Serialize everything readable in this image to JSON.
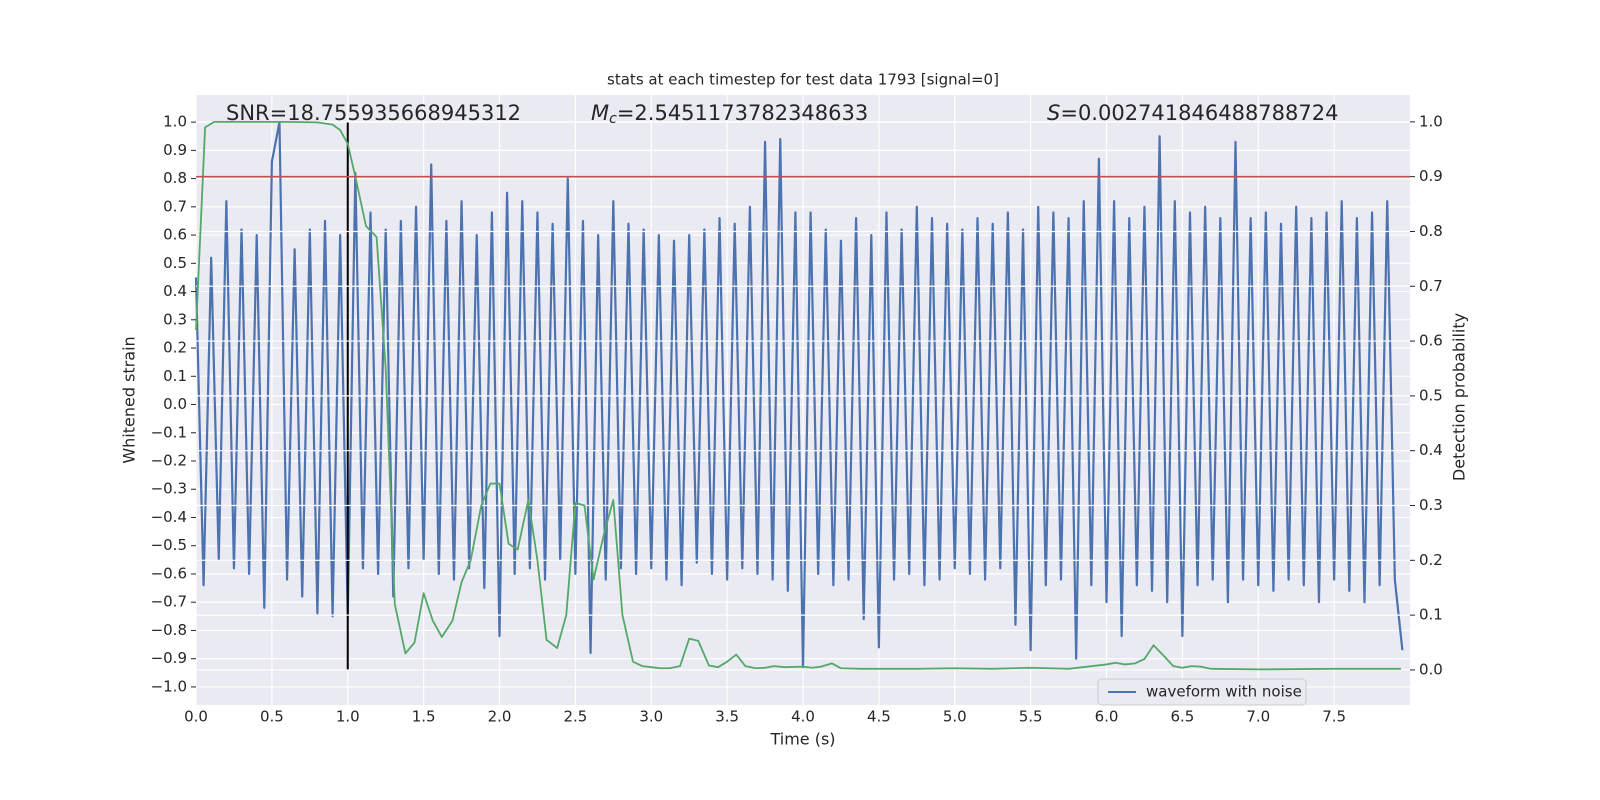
{
  "chart_data": {
    "type": "line",
    "title": "stats at each timestep for test data 1793 [signal=0]",
    "xlabel": "Time (s)",
    "ylabel": "Whitened strain",
    "y2label": "Detection probability",
    "annotations": {
      "snr": "SNR=18.755935668945312",
      "mc": {
        "symbol": "M",
        "subscript": "c",
        "text": "=2.5451173782348633"
      },
      "s": {
        "symbol": "S",
        "text": "=0.002741846488788724"
      }
    },
    "xlim": [
      0,
      8.0
    ],
    "ylim": [
      -1.064,
      1.096
    ],
    "y2lim": [
      -0.064,
      1.049
    ],
    "xticks": [
      {
        "value": 0,
        "label": "0.0"
      },
      0.5,
      {
        "value": 1,
        "label": "1.0"
      },
      1.5,
      {
        "value": 2,
        "label": "2.0"
      },
      2.5,
      {
        "value": 3,
        "label": "3.0"
      },
      3.5,
      {
        "value": 4,
        "label": "4.0"
      },
      4.5,
      {
        "value": 5,
        "label": "5.0"
      },
      5.5,
      {
        "value": 6,
        "label": "6.0"
      },
      6.5,
      {
        "value": 7,
        "label": "7.0"
      },
      7.5
    ],
    "yticks": [
      {
        "value": -1,
        "label": "−1.0"
      },
      {
        "value": -0.9,
        "label": "−0.9"
      },
      {
        "value": -0.8,
        "label": "−0.8"
      },
      {
        "value": -0.7,
        "label": "−0.7"
      },
      {
        "value": -0.6,
        "label": "−0.6"
      },
      {
        "value": -0.5,
        "label": "−0.5"
      },
      {
        "value": -0.4,
        "label": "−0.4"
      },
      {
        "value": -0.3,
        "label": "−0.3"
      },
      {
        "value": -0.2,
        "label": "−0.2"
      },
      {
        "value": -0.1,
        "label": "−0.1"
      },
      {
        "value": 0,
        "label": "0.0"
      },
      0.1,
      0.2,
      0.3,
      0.4,
      0.5,
      0.6,
      0.7,
      0.8,
      0.9,
      {
        "value": 1,
        "label": "1.0"
      }
    ],
    "y2ticks": [
      {
        "value": 0,
        "label": "0.0"
      },
      0.1,
      0.2,
      0.3,
      0.4,
      0.5,
      0.6,
      0.7,
      0.8,
      0.9,
      {
        "value": 1,
        "label": "1.0"
      }
    ],
    "grid": true,
    "hline": {
      "y2": 0.9,
      "color": "#c44e52"
    },
    "vline": {
      "x": 1.0,
      "ymin": -0.94,
      "ymax": 1.0,
      "color": "#000000"
    },
    "series": [
      {
        "name": "waveform with noise",
        "color": "#4c72b0",
        "x": [
          0,
          0.05,
          0.1,
          0.15,
          0.2,
          0.25,
          0.3,
          0.35,
          0.4,
          0.45,
          0.5,
          0.55,
          0.6,
          0.65,
          0.7,
          0.75,
          0.8,
          0.85,
          0.9,
          0.95,
          1,
          1.05,
          1.1,
          1.15,
          1.2,
          1.25,
          1.3,
          1.35,
          1.4,
          1.45,
          1.5,
          1.55,
          1.6,
          1.65,
          1.7,
          1.75,
          1.8,
          1.85,
          1.9,
          1.95,
          2,
          2.05,
          2.1,
          2.15,
          2.2,
          2.25,
          2.3,
          2.35,
          2.4,
          2.45,
          2.5,
          2.55,
          2.6,
          2.65,
          2.7,
          2.75,
          2.8,
          2.85,
          2.9,
          2.95,
          3,
          3.05,
          3.1,
          3.15,
          3.2,
          3.25,
          3.3,
          3.35,
          3.4,
          3.45,
          3.5,
          3.55,
          3.6,
          3.65,
          3.7,
          3.75,
          3.8,
          3.85,
          3.9,
          3.95,
          4,
          4.05,
          4.1,
          4.15,
          4.2,
          4.25,
          4.3,
          4.35,
          4.4,
          4.45,
          4.5,
          4.55,
          4.6,
          4.65,
          4.7,
          4.75,
          4.8,
          4.85,
          4.9,
          4.95,
          5,
          5.05,
          5.1,
          5.15,
          5.2,
          5.25,
          5.3,
          5.35,
          5.4,
          5.45,
          5.5,
          5.55,
          5.6,
          5.65,
          5.7,
          5.75,
          5.8,
          5.85,
          5.9,
          5.95,
          6,
          6.05,
          6.1,
          6.15,
          6.2,
          6.25,
          6.3,
          6.35,
          6.4,
          6.45,
          6.5,
          6.55,
          6.6,
          6.65,
          6.7,
          6.75,
          6.8,
          6.85,
          6.9,
          6.95,
          7,
          7.05,
          7.1,
          7.15,
          7.2,
          7.25,
          7.3,
          7.35,
          7.4,
          7.45,
          7.5,
          7.55,
          7.6,
          7.65,
          7.7,
          7.75,
          7.8,
          7.85,
          7.9,
          7.95
        ],
        "values": [
          0.45,
          -0.64,
          0.52,
          -0.55,
          0.72,
          -0.58,
          0.62,
          -0.6,
          0.6,
          -0.72,
          0.86,
          1.0,
          -0.62,
          0.55,
          -0.68,
          0.62,
          -0.74,
          0.65,
          -0.75,
          0.6,
          -0.75,
          0.82,
          -0.58,
          0.68,
          -0.6,
          0.62,
          -0.68,
          0.65,
          -0.58,
          0.7,
          -0.55,
          0.85,
          -0.6,
          0.65,
          -0.62,
          0.72,
          -0.58,
          0.6,
          -0.65,
          0.68,
          -0.82,
          0.75,
          -0.6,
          0.72,
          -0.58,
          0.68,
          -0.62,
          0.64,
          -0.55,
          0.8,
          -0.6,
          0.65,
          -0.88,
          0.6,
          -0.62,
          0.72,
          -0.58,
          0.64,
          -0.6,
          0.62,
          -0.58,
          0.6,
          -0.62,
          0.58,
          -0.64,
          0.6,
          -0.56,
          0.62,
          -0.6,
          0.66,
          -0.62,
          0.64,
          -0.58,
          0.7,
          -0.6,
          0.93,
          -0.62,
          0.94,
          -0.66,
          0.68,
          -0.93,
          0.68,
          -0.6,
          0.62,
          -0.64,
          0.58,
          -0.62,
          0.66,
          -0.76,
          0.6,
          -0.86,
          0.68,
          -0.62,
          0.62,
          -0.6,
          0.7,
          -0.64,
          0.66,
          -0.62,
          0.64,
          -0.58,
          0.62,
          -0.6,
          0.66,
          -0.62,
          0.64,
          -0.58,
          0.68,
          -0.78,
          0.62,
          -0.87,
          0.7,
          -0.64,
          0.68,
          -0.62,
          0.66,
          -0.9,
          0.72,
          -0.64,
          0.87,
          -0.7,
          0.72,
          -0.82,
          0.66,
          -0.64,
          0.7,
          -0.66,
          0.95,
          -0.7,
          0.72,
          -0.82,
          0.68,
          -0.64,
          0.7,
          -0.62,
          0.66,
          -0.7,
          0.93,
          -0.62,
          0.66,
          -0.64,
          0.68,
          -0.66,
          0.64,
          -0.62,
          0.7,
          -0.64,
          0.66,
          -0.7,
          0.68,
          -0.62,
          0.72,
          -0.66,
          0.66,
          -0.7,
          0.68,
          -0.64,
          0.72,
          -0.62,
          -0.87
        ]
      },
      {
        "color": "#55a868",
        "axis": "y2",
        "x": [
          0,
          0.06,
          0.12,
          0.3,
          0.6,
          0.8,
          0.9,
          0.95,
          1.0,
          1.05,
          1.12,
          1.19,
          1.25,
          1.31,
          1.38,
          1.44,
          1.5,
          1.56,
          1.62,
          1.69,
          1.75,
          1.81,
          1.88,
          1.94,
          2.0,
          2.06,
          2.12,
          2.19,
          2.25,
          2.31,
          2.38,
          2.44,
          2.5,
          2.56,
          2.62,
          2.69,
          2.75,
          2.81,
          2.88,
          2.94,
          3.0,
          3.06,
          3.12,
          3.19,
          3.25,
          3.31,
          3.38,
          3.44,
          3.5,
          3.56,
          3.62,
          3.69,
          3.75,
          3.81,
          3.88,
          4.0,
          4.06,
          4.12,
          4.19,
          4.25,
          4.38,
          4.5,
          4.75,
          5.0,
          5.25,
          5.5,
          5.75,
          6.0,
          6.06,
          6.12,
          6.19,
          6.25,
          6.31,
          6.38,
          6.44,
          6.5,
          6.56,
          6.62,
          6.69,
          7.0,
          7.5,
          7.94
        ],
        "values": [
          0.62,
          0.99,
          1.0,
          1.0,
          1.0,
          0.999,
          0.995,
          0.985,
          0.96,
          0.9,
          0.81,
          0.79,
          0.55,
          0.12,
          0.03,
          0.05,
          0.14,
          0.09,
          0.06,
          0.09,
          0.16,
          0.2,
          0.3,
          0.34,
          0.34,
          0.23,
          0.22,
          0.31,
          0.2,
          0.055,
          0.04,
          0.1,
          0.305,
          0.3,
          0.165,
          0.25,
          0.31,
          0.1,
          0.015,
          0.007,
          0.005,
          0.003,
          0.003,
          0.007,
          0.057,
          0.053,
          0.008,
          0.005,
          0.015,
          0.028,
          0.007,
          0.003,
          0.004,
          0.007,
          0.005,
          0.006,
          0.004,
          0.006,
          0.012,
          0.003,
          0.002,
          0.002,
          0.002,
          0.003,
          0.002,
          0.004,
          0.002,
          0.01,
          0.013,
          0.01,
          0.012,
          0.02,
          0.045,
          0.025,
          0.007,
          0.004,
          0.007,
          0.006,
          0.002,
          0.001,
          0.002,
          0.002
        ]
      }
    ]
  }
}
